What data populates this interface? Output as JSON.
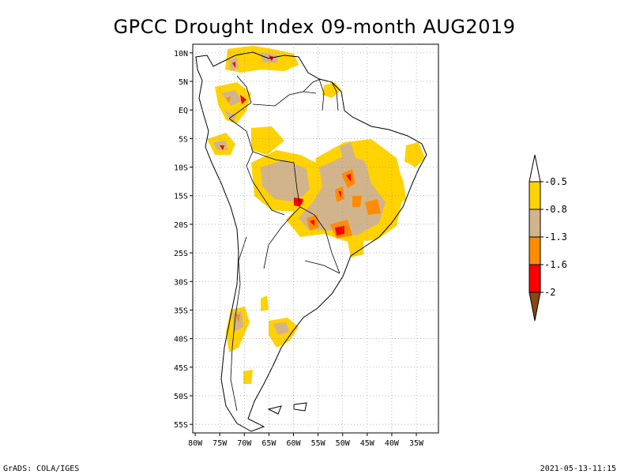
{
  "title": "GPCC Drought Index 09-month AUG2019",
  "footer_left": "GrADS: COLA/IGES",
  "footer_right": "2021-05-13-11:15",
  "map": {
    "lon_range": [
      -80.5,
      -30.5
    ],
    "lat_range": [
      -56.5,
      11.5
    ],
    "lat_ticks": [
      {
        "lat": 10,
        "label": "10N"
      },
      {
        "lat": 5,
        "label": "5N"
      },
      {
        "lat": 0,
        "label": "EQ"
      },
      {
        "lat": -5,
        "label": "5S"
      },
      {
        "lat": -10,
        "label": "10S"
      },
      {
        "lat": -15,
        "label": "15S"
      },
      {
        "lat": -20,
        "label": "20S"
      },
      {
        "lat": -25,
        "label": "25S"
      },
      {
        "lat": -30,
        "label": "30S"
      },
      {
        "lat": -35,
        "label": "35S"
      },
      {
        "lat": -40,
        "label": "40S"
      },
      {
        "lat": -45,
        "label": "45S"
      },
      {
        "lat": -50,
        "label": "50S"
      },
      {
        "lat": -55,
        "label": "55S"
      }
    ],
    "lon_ticks": [
      {
        "lon": -80,
        "label": "80W"
      },
      {
        "lon": -75,
        "label": "75W"
      },
      {
        "lon": -70,
        "label": "70W"
      },
      {
        "lon": -65,
        "label": "65W"
      },
      {
        "lon": -60,
        "label": "60W"
      },
      {
        "lon": -55,
        "label": "55W"
      },
      {
        "lon": -50,
        "label": "50W"
      },
      {
        "lon": -45,
        "label": "45W"
      },
      {
        "lon": -40,
        "label": "40W"
      },
      {
        "lon": -35,
        "label": "35W"
      }
    ],
    "grid": "dotted"
  },
  "legend": {
    "labels": [
      "-0.5",
      "-0.8",
      "-1.3",
      "-1.6",
      "-2"
    ],
    "colors": [
      "#ffffff",
      "#ffd200",
      "#d2b48c",
      "#ff8c00",
      "#ff0000",
      "#8b4513"
    ]
  }
}
